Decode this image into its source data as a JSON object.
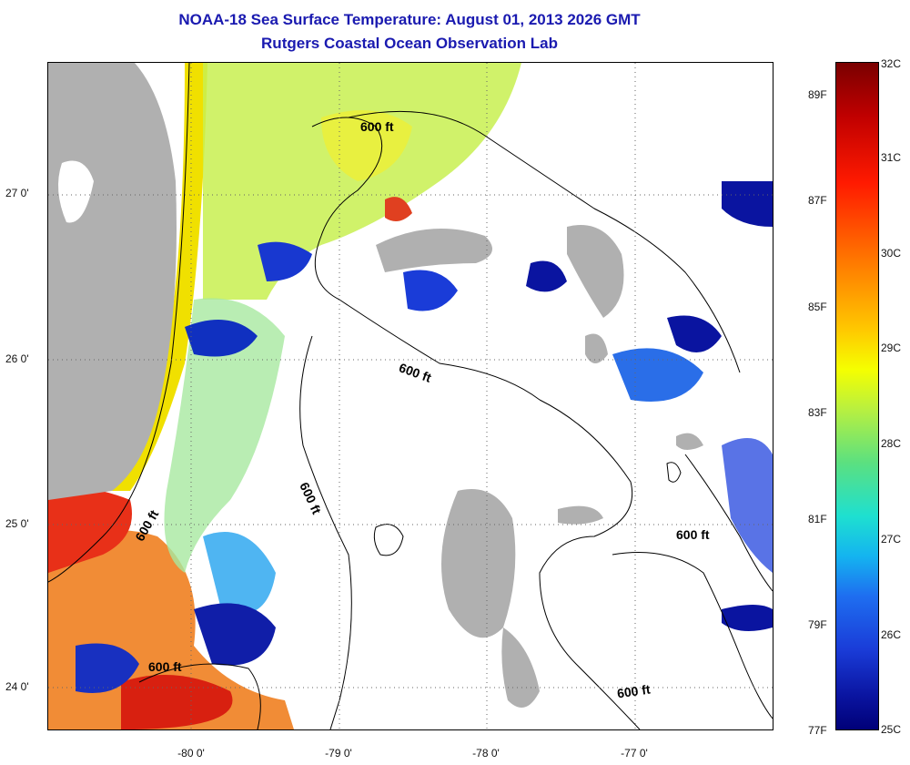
{
  "title": {
    "line1": "NOAA-18 Sea Surface Temperature:  August 01, 2013 2026 GMT",
    "line2": "Rutgers Coastal Ocean Observation Lab"
  },
  "axes": {
    "lat_labels": [
      "27 0'",
      "26 0'",
      "25 0'",
      "24 0'"
    ],
    "lon_labels": [
      "-80 0'",
      "-79 0'",
      "-78 0'",
      "-77 0'"
    ]
  },
  "contour_labels": [
    "600 ft",
    "600 ft",
    "600 ft",
    "600 ft",
    "600 ft",
    "600 ft"
  ],
  "colorbar": {
    "celsius": [
      "32C",
      "31C",
      "30C",
      "29C",
      "28C",
      "27C",
      "26C",
      "25C"
    ],
    "fahrenheit": [
      "89F",
      "87F",
      "85F",
      "83F",
      "81F",
      "79F",
      "77F"
    ],
    "colors": {
      "land": "#b0b0b0",
      "warm": "#e01010",
      "mid": "#f0f000",
      "cool": "#20c0f0",
      "cold": "#000090"
    }
  }
}
